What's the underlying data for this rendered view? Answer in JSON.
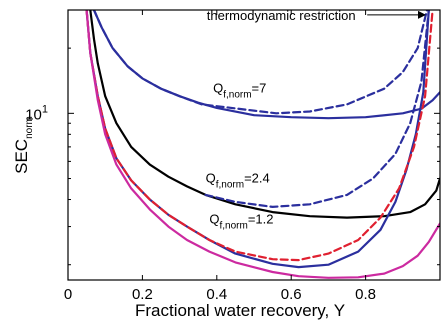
{
  "chart_data": {
    "type": "line",
    "xlabel": "Fractional water recovery, Y",
    "ylabel": "SEC",
    "ylabel_sub": "norm",
    "xlim": [
      0,
      1
    ],
    "ylim": [
      1.7,
      30
    ],
    "y_scale": "log",
    "grid": false,
    "x_ticks": [
      0,
      0.2,
      0.4,
      0.6,
      0.8
    ],
    "x_tick_labels": [
      "0",
      "0.2",
      "0.4",
      "0.6",
      "0.8"
    ],
    "y_ticks": [
      10
    ],
    "y_tick_labels": [
      {
        "base": "10",
        "exp": "1"
      }
    ],
    "annotations": [
      {
        "text": "thermodynamic restriction",
        "arrow_to": [
          0.965,
          28.5
        ],
        "at": [
          0.6,
          28.5
        ]
      },
      {
        "main": "Q",
        "sub": "f,norm",
        "suffix": "=7",
        "at": [
          0.39,
          12.5
        ]
      },
      {
        "main": "Q",
        "sub": "f,norm",
        "suffix": "=2.4",
        "at": [
          0.37,
          4.8
        ]
      },
      {
        "main": "Q",
        "sub": "f,norm",
        "suffix": "=1.2",
        "at": [
          0.38,
          3.1
        ]
      }
    ],
    "series": [
      {
        "color": "#2b2f9e",
        "dash": false,
        "x": [
          0.07,
          0.09,
          0.12,
          0.16,
          0.2,
          0.25,
          0.3,
          0.35,
          0.4,
          0.5,
          0.6,
          0.7,
          0.8,
          0.9,
          0.95,
          0.98,
          1.0
        ],
        "y": [
          30,
          25,
          20,
          16.5,
          14.5,
          13,
          12,
          11.2,
          10.6,
          9.8,
          9.6,
          9.5,
          9.6,
          10,
          10.5,
          11.5,
          12.5
        ]
      },
      {
        "color": "#2b2f9e",
        "dash": true,
        "x": [
          0.07,
          0.09,
          0.12,
          0.16,
          0.2,
          0.25,
          0.3,
          0.36,
          0.56,
          0.65,
          0.75,
          0.85,
          0.9,
          0.94,
          0.965
        ],
        "y": [
          30,
          25,
          20,
          16.5,
          14.5,
          13,
          12,
          11,
          10,
          10.2,
          11,
          13,
          15.5,
          20,
          30
        ]
      },
      {
        "color": "#000000",
        "dash": false,
        "x": [
          0.06,
          0.07,
          0.08,
          0.1,
          0.13,
          0.17,
          0.22,
          0.27,
          0.32,
          0.37,
          0.45,
          0.55,
          0.65,
          0.75,
          0.85,
          0.92,
          0.96,
          0.99,
          1.0
        ],
        "y": [
          30,
          22,
          17,
          12,
          9,
          7,
          5.8,
          5.1,
          4.6,
          4.2,
          3.8,
          3.5,
          3.35,
          3.3,
          3.35,
          3.5,
          3.8,
          4.4,
          5
        ]
      },
      {
        "color": "#2b2f9e",
        "dash": true,
        "x": [
          0.37,
          0.45,
          0.55,
          0.65,
          0.75,
          0.82,
          0.88,
          0.92,
          0.95,
          0.97
        ],
        "y": [
          4.2,
          3.9,
          3.7,
          3.8,
          4.2,
          5,
          6.5,
          9,
          14,
          30
        ]
      },
      {
        "color": "#2b2f9e",
        "dash": false,
        "x": [
          0.05,
          0.06,
          0.08,
          0.1,
          0.13,
          0.17,
          0.22,
          0.27,
          0.32,
          0.38,
          0.45,
          0.55,
          0.62,
          0.7,
          0.78,
          0.84,
          0.88,
          0.91,
          0.935,
          0.955,
          0.97
        ],
        "y": [
          30,
          19,
          12,
          8.5,
          6.2,
          4.9,
          4,
          3.4,
          3,
          2.6,
          2.25,
          2.02,
          1.95,
          2,
          2.3,
          2.9,
          3.9,
          5.5,
          8,
          12.5,
          30
        ]
      },
      {
        "color": "#e02030",
        "dash": true,
        "x": [
          0.05,
          0.06,
          0.08,
          0.1,
          0.13,
          0.17,
          0.22,
          0.27,
          0.32,
          0.38,
          0.45,
          0.55,
          0.62,
          0.7,
          0.78,
          0.84,
          0.89,
          0.93,
          0.96,
          0.98
        ],
        "y": [
          30,
          19,
          12,
          8.5,
          6.2,
          4.9,
          4,
          3.4,
          3,
          2.6,
          2.3,
          2.12,
          2.1,
          2.25,
          2.6,
          3.3,
          4.5,
          7,
          12,
          30
        ]
      },
      {
        "color": "#cc2aa0",
        "dash": false,
        "x": [
          0.05,
          0.06,
          0.08,
          0.1,
          0.13,
          0.17,
          0.22,
          0.27,
          0.32,
          0.38,
          0.45,
          0.55,
          0.62,
          0.7,
          0.78,
          0.85,
          0.9,
          0.94,
          0.97,
          1.0
        ],
        "y": [
          30,
          19,
          11.5,
          8,
          5.8,
          4.5,
          3.6,
          3,
          2.6,
          2.3,
          2.05,
          1.85,
          1.77,
          1.74,
          1.75,
          1.82,
          1.97,
          2.2,
          2.55,
          3.1
        ]
      }
    ]
  }
}
